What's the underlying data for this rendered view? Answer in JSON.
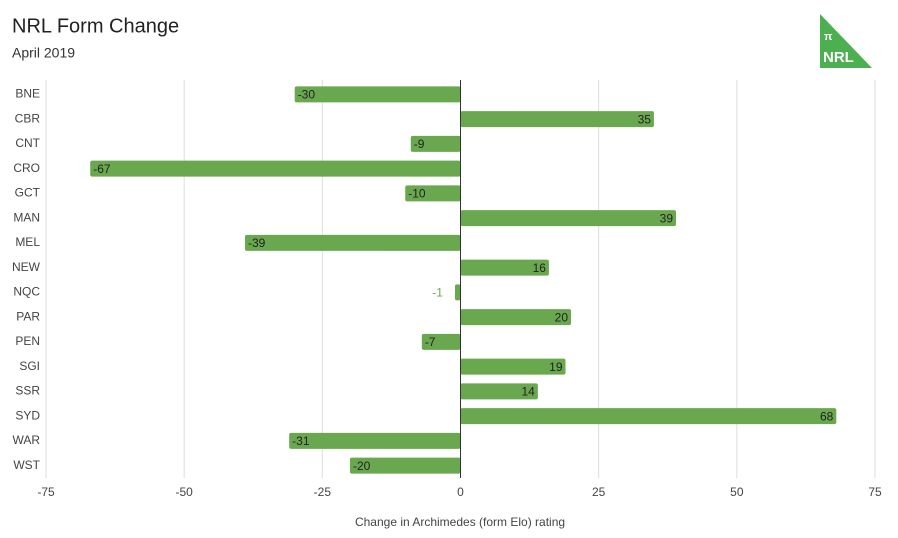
{
  "chart_data": {
    "type": "bar",
    "orientation": "horizontal",
    "title": "NRL Form Change",
    "subtitle": "April 2019",
    "logo": {
      "symbol": "π",
      "text": "NRL"
    },
    "x_label": "Change in Archimedes (form Elo) rating",
    "categories": [
      "BNE",
      "CBR",
      "CNT",
      "CRO",
      "GCT",
      "MAN",
      "MEL",
      "NEW",
      "NQC",
      "PAR",
      "PEN",
      "SGI",
      "SSR",
      "SYD",
      "WAR",
      "WST"
    ],
    "values": [
      -30,
      35,
      -9,
      -67,
      -10,
      39,
      -39,
      16,
      -1,
      20,
      -7,
      19,
      14,
      68,
      -31,
      -20
    ],
    "color": "#6aa84f",
    "xlim": [
      -75,
      75
    ],
    "xticks": [
      -75,
      -50,
      -25,
      0,
      25,
      50,
      75
    ],
    "grid": true
  }
}
